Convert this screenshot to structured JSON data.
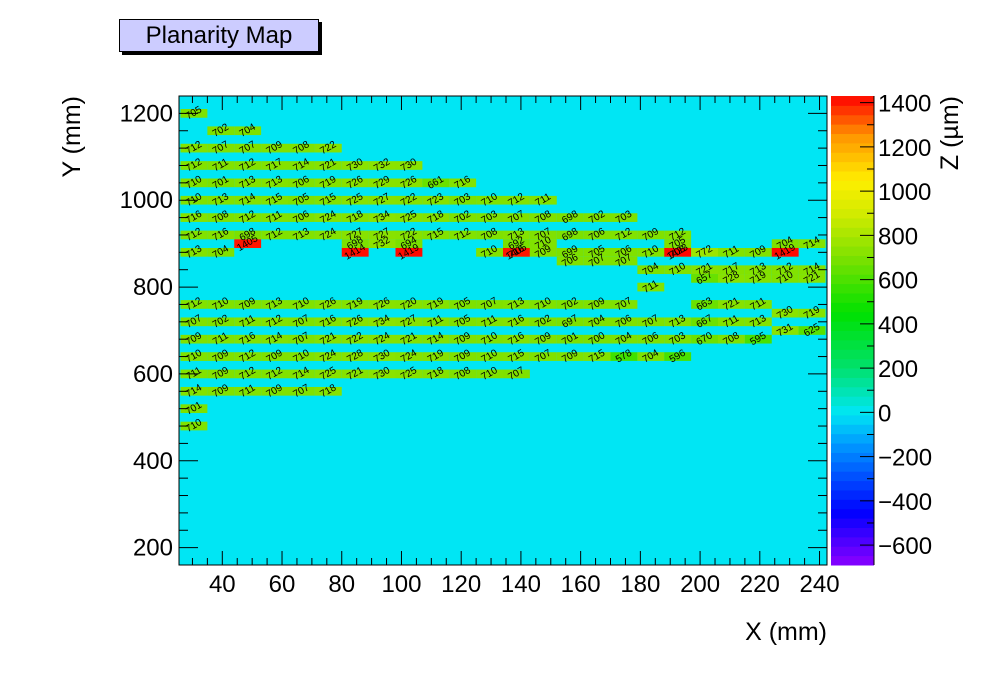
{
  "title": "Planarity Map",
  "chart_data": {
    "type": "heatmap",
    "xlabel": "X (mm)",
    "ylabel": "Y (mm)",
    "zlabel": "Z (µm)",
    "xlim": [
      25.5,
      242.5
    ],
    "ylim": [
      160,
      1240
    ],
    "zlim": [
      -690,
      1430
    ],
    "x_ticks": [
      40,
      60,
      80,
      100,
      120,
      140,
      160,
      180,
      200,
      220,
      240
    ],
    "y_ticks": [
      200,
      400,
      600,
      800,
      1000,
      1200
    ],
    "z_ticks": [
      -600,
      -400,
      -200,
      0,
      200,
      400,
      600,
      800,
      1000,
      1200,
      1400
    ],
    "z_tick_labels": [
      "−600",
      "−400",
      "−200",
      "0",
      "200",
      "400",
      "600",
      "800",
      "1000",
      "1200",
      "1400"
    ],
    "background_color": "#00e6f4",
    "cell_width": 9,
    "cell_height": 20,
    "columns": [
      {
        "x": 30.5,
        "cells": [
          [
            1200,
            705
          ],
          [
            1120,
            712
          ],
          [
            1080,
            712
          ],
          [
            1040,
            710
          ],
          [
            1000,
            710
          ],
          [
            960,
            716
          ],
          [
            920,
            712
          ],
          [
            880,
            713
          ],
          [
            760,
            712
          ],
          [
            720,
            707
          ],
          [
            680,
            709
          ],
          [
            640,
            710
          ],
          [
            600,
            711
          ],
          [
            560,
            714
          ],
          [
            520,
            701
          ],
          [
            480,
            710
          ]
        ]
      },
      {
        "x": 39.5,
        "cells": [
          [
            1160,
            702
          ],
          [
            1120,
            707
          ],
          [
            1080,
            711
          ],
          [
            1040,
            701
          ],
          [
            1000,
            713
          ],
          [
            960,
            708
          ],
          [
            920,
            716
          ],
          [
            880,
            704
          ],
          [
            760,
            710
          ],
          [
            720,
            702
          ],
          [
            680,
            711
          ],
          [
            640,
            709
          ],
          [
            600,
            709
          ],
          [
            560,
            709
          ]
        ]
      },
      {
        "x": 48.5,
        "cells": [
          [
            1160,
            704
          ],
          [
            1120,
            707
          ],
          [
            1080,
            712
          ],
          [
            1040,
            713
          ],
          [
            1000,
            714
          ],
          [
            960,
            712
          ],
          [
            920,
            698
          ],
          [
            900,
            1405
          ],
          [
            760,
            709
          ],
          [
            720,
            711
          ],
          [
            680,
            716
          ],
          [
            640,
            712
          ],
          [
            600,
            712
          ],
          [
            560,
            711
          ]
        ]
      },
      {
        "x": 57.5,
        "cells": [
          [
            1120,
            709
          ],
          [
            1080,
            717
          ],
          [
            1040,
            713
          ],
          [
            1000,
            715
          ],
          [
            960,
            711
          ],
          [
            920,
            712
          ],
          [
            760,
            713
          ],
          [
            720,
            712
          ],
          [
            680,
            714
          ],
          [
            640,
            709
          ],
          [
            600,
            712
          ],
          [
            560,
            709
          ]
        ]
      },
      {
        "x": 66.5,
        "cells": [
          [
            1120,
            708
          ],
          [
            1080,
            714
          ],
          [
            1040,
            706
          ],
          [
            1000,
            705
          ],
          [
            960,
            706
          ],
          [
            920,
            713
          ],
          [
            760,
            710
          ],
          [
            720,
            707
          ],
          [
            680,
            707
          ],
          [
            640,
            710
          ],
          [
            600,
            714
          ],
          [
            560,
            707
          ]
        ]
      },
      {
        "x": 75.5,
        "cells": [
          [
            1120,
            722
          ],
          [
            1080,
            721
          ],
          [
            1040,
            719
          ],
          [
            1000,
            715
          ],
          [
            960,
            724
          ],
          [
            920,
            724
          ],
          [
            760,
            726
          ],
          [
            720,
            716
          ],
          [
            680,
            721
          ],
          [
            640,
            724
          ],
          [
            600,
            725
          ],
          [
            560,
            718
          ]
        ]
      },
      {
        "x": 84.5,
        "cells": [
          [
            1080,
            730
          ],
          [
            1040,
            726
          ],
          [
            1000,
            725
          ],
          [
            960,
            718
          ],
          [
            920,
            727
          ],
          [
            900,
            698
          ],
          [
            880,
            1414
          ],
          [
            760,
            719
          ],
          [
            720,
            726
          ],
          [
            680,
            722
          ],
          [
            640,
            728
          ],
          [
            600,
            721
          ]
        ]
      },
      {
        "x": 93.5,
        "cells": [
          [
            1080,
            732
          ],
          [
            1040,
            729
          ],
          [
            1000,
            727
          ],
          [
            960,
            734
          ],
          [
            920,
            727
          ],
          [
            900,
            732
          ],
          [
            760,
            726
          ],
          [
            720,
            734
          ],
          [
            680,
            724
          ],
          [
            640,
            730
          ],
          [
            600,
            730
          ]
        ]
      },
      {
        "x": 102.5,
        "cells": [
          [
            1080,
            730
          ],
          [
            1040,
            726
          ],
          [
            1000,
            722
          ],
          [
            960,
            725
          ],
          [
            920,
            722
          ],
          [
            900,
            694
          ],
          [
            880,
            1419
          ],
          [
            760,
            720
          ],
          [
            720,
            727
          ],
          [
            680,
            721
          ],
          [
            640,
            724
          ],
          [
            600,
            725
          ]
        ]
      },
      {
        "x": 111.5,
        "cells": [
          [
            1040,
            661
          ],
          [
            1000,
            723
          ],
          [
            960,
            718
          ],
          [
            920,
            715
          ],
          [
            760,
            719
          ],
          [
            720,
            711
          ],
          [
            680,
            714
          ],
          [
            640,
            719
          ],
          [
            600,
            718
          ]
        ]
      },
      {
        "x": 120.5,
        "cells": [
          [
            1040,
            716
          ],
          [
            1000,
            703
          ],
          [
            960,
            702
          ],
          [
            920,
            712
          ],
          [
            760,
            705
          ],
          [
            720,
            705
          ],
          [
            680,
            709
          ],
          [
            640,
            709
          ],
          [
            600,
            708
          ]
        ]
      },
      {
        "x": 129.5,
        "cells": [
          [
            1000,
            710
          ],
          [
            960,
            703
          ],
          [
            920,
            708
          ],
          [
            880,
            710
          ],
          [
            760,
            707
          ],
          [
            720,
            711
          ],
          [
            680,
            710
          ],
          [
            640,
            710
          ],
          [
            600,
            710
          ]
        ]
      },
      {
        "x": 138.5,
        "cells": [
          [
            1000,
            712
          ],
          [
            960,
            707
          ],
          [
            920,
            713
          ],
          [
            880,
            716
          ],
          [
            900,
            692
          ],
          [
            880,
            1405
          ],
          [
            760,
            713
          ],
          [
            720,
            716
          ],
          [
            680,
            716
          ],
          [
            640,
            715
          ],
          [
            600,
            707
          ]
        ]
      },
      {
        "x": 147.5,
        "cells": [
          [
            1000,
            711
          ],
          [
            960,
            708
          ],
          [
            920,
            707
          ],
          [
            880,
            709
          ],
          [
            900,
            710
          ],
          [
            760,
            710
          ],
          [
            720,
            702
          ],
          [
            680,
            709
          ],
          [
            640,
            707
          ]
        ]
      },
      {
        "x": 156.5,
        "cells": [
          [
            960,
            698
          ],
          [
            920,
            698
          ],
          [
            880,
            699
          ],
          [
            860,
            706
          ],
          [
            760,
            702
          ],
          [
            720,
            697
          ],
          [
            680,
            701
          ],
          [
            640,
            709
          ]
        ]
      },
      {
        "x": 165.5,
        "cells": [
          [
            960,
            702
          ],
          [
            920,
            706
          ],
          [
            880,
            705
          ],
          [
            860,
            707
          ],
          [
            760,
            709
          ],
          [
            720,
            704
          ],
          [
            680,
            700
          ],
          [
            640,
            715
          ]
        ]
      },
      {
        "x": 174.5,
        "cells": [
          [
            960,
            703
          ],
          [
            920,
            712
          ],
          [
            880,
            706
          ],
          [
            860,
            707
          ],
          [
            760,
            707
          ],
          [
            720,
            706
          ],
          [
            680,
            704
          ],
          [
            640,
            578
          ]
        ]
      },
      {
        "x": 183.5,
        "cells": [
          [
            920,
            709
          ],
          [
            880,
            710
          ],
          [
            840,
            704
          ],
          [
            800,
            711
          ],
          [
            720,
            707
          ],
          [
            680,
            706
          ],
          [
            640,
            704
          ]
        ]
      },
      {
        "x": 192.5,
        "cells": [
          [
            920,
            712
          ],
          [
            880,
            708
          ],
          [
            840,
            710
          ],
          [
            900,
            705
          ],
          [
            880,
            1423
          ],
          [
            720,
            713
          ],
          [
            680,
            703
          ],
          [
            640,
            596
          ]
        ]
      },
      {
        "x": 201.5,
        "cells": [
          [
            880,
            772
          ],
          [
            840,
            721
          ],
          [
            820,
            657
          ],
          [
            760,
            663
          ],
          [
            720,
            667
          ],
          [
            680,
            670
          ]
        ]
      },
      {
        "x": 210.5,
        "cells": [
          [
            880,
            711
          ],
          [
            840,
            717
          ],
          [
            820,
            728
          ],
          [
            760,
            721
          ],
          [
            720,
            711
          ],
          [
            680,
            708
          ]
        ]
      },
      {
        "x": 219.5,
        "cells": [
          [
            880,
            709
          ],
          [
            840,
            713
          ],
          [
            820,
            719
          ],
          [
            760,
            711
          ],
          [
            720,
            713
          ],
          [
            680,
            595
          ]
        ]
      },
      {
        "x": 228.5,
        "cells": [
          [
            840,
            712
          ],
          [
            820,
            710
          ],
          [
            900,
            704
          ],
          [
            880,
            1419
          ],
          [
            740,
            730
          ],
          [
            700,
            731
          ]
        ]
      },
      {
        "x": 237.5,
        "cells": [
          [
            840,
            714
          ],
          [
            820,
            721
          ],
          [
            900,
            714
          ],
          [
            740,
            719
          ],
          [
            700,
            625
          ]
        ]
      }
    ]
  }
}
